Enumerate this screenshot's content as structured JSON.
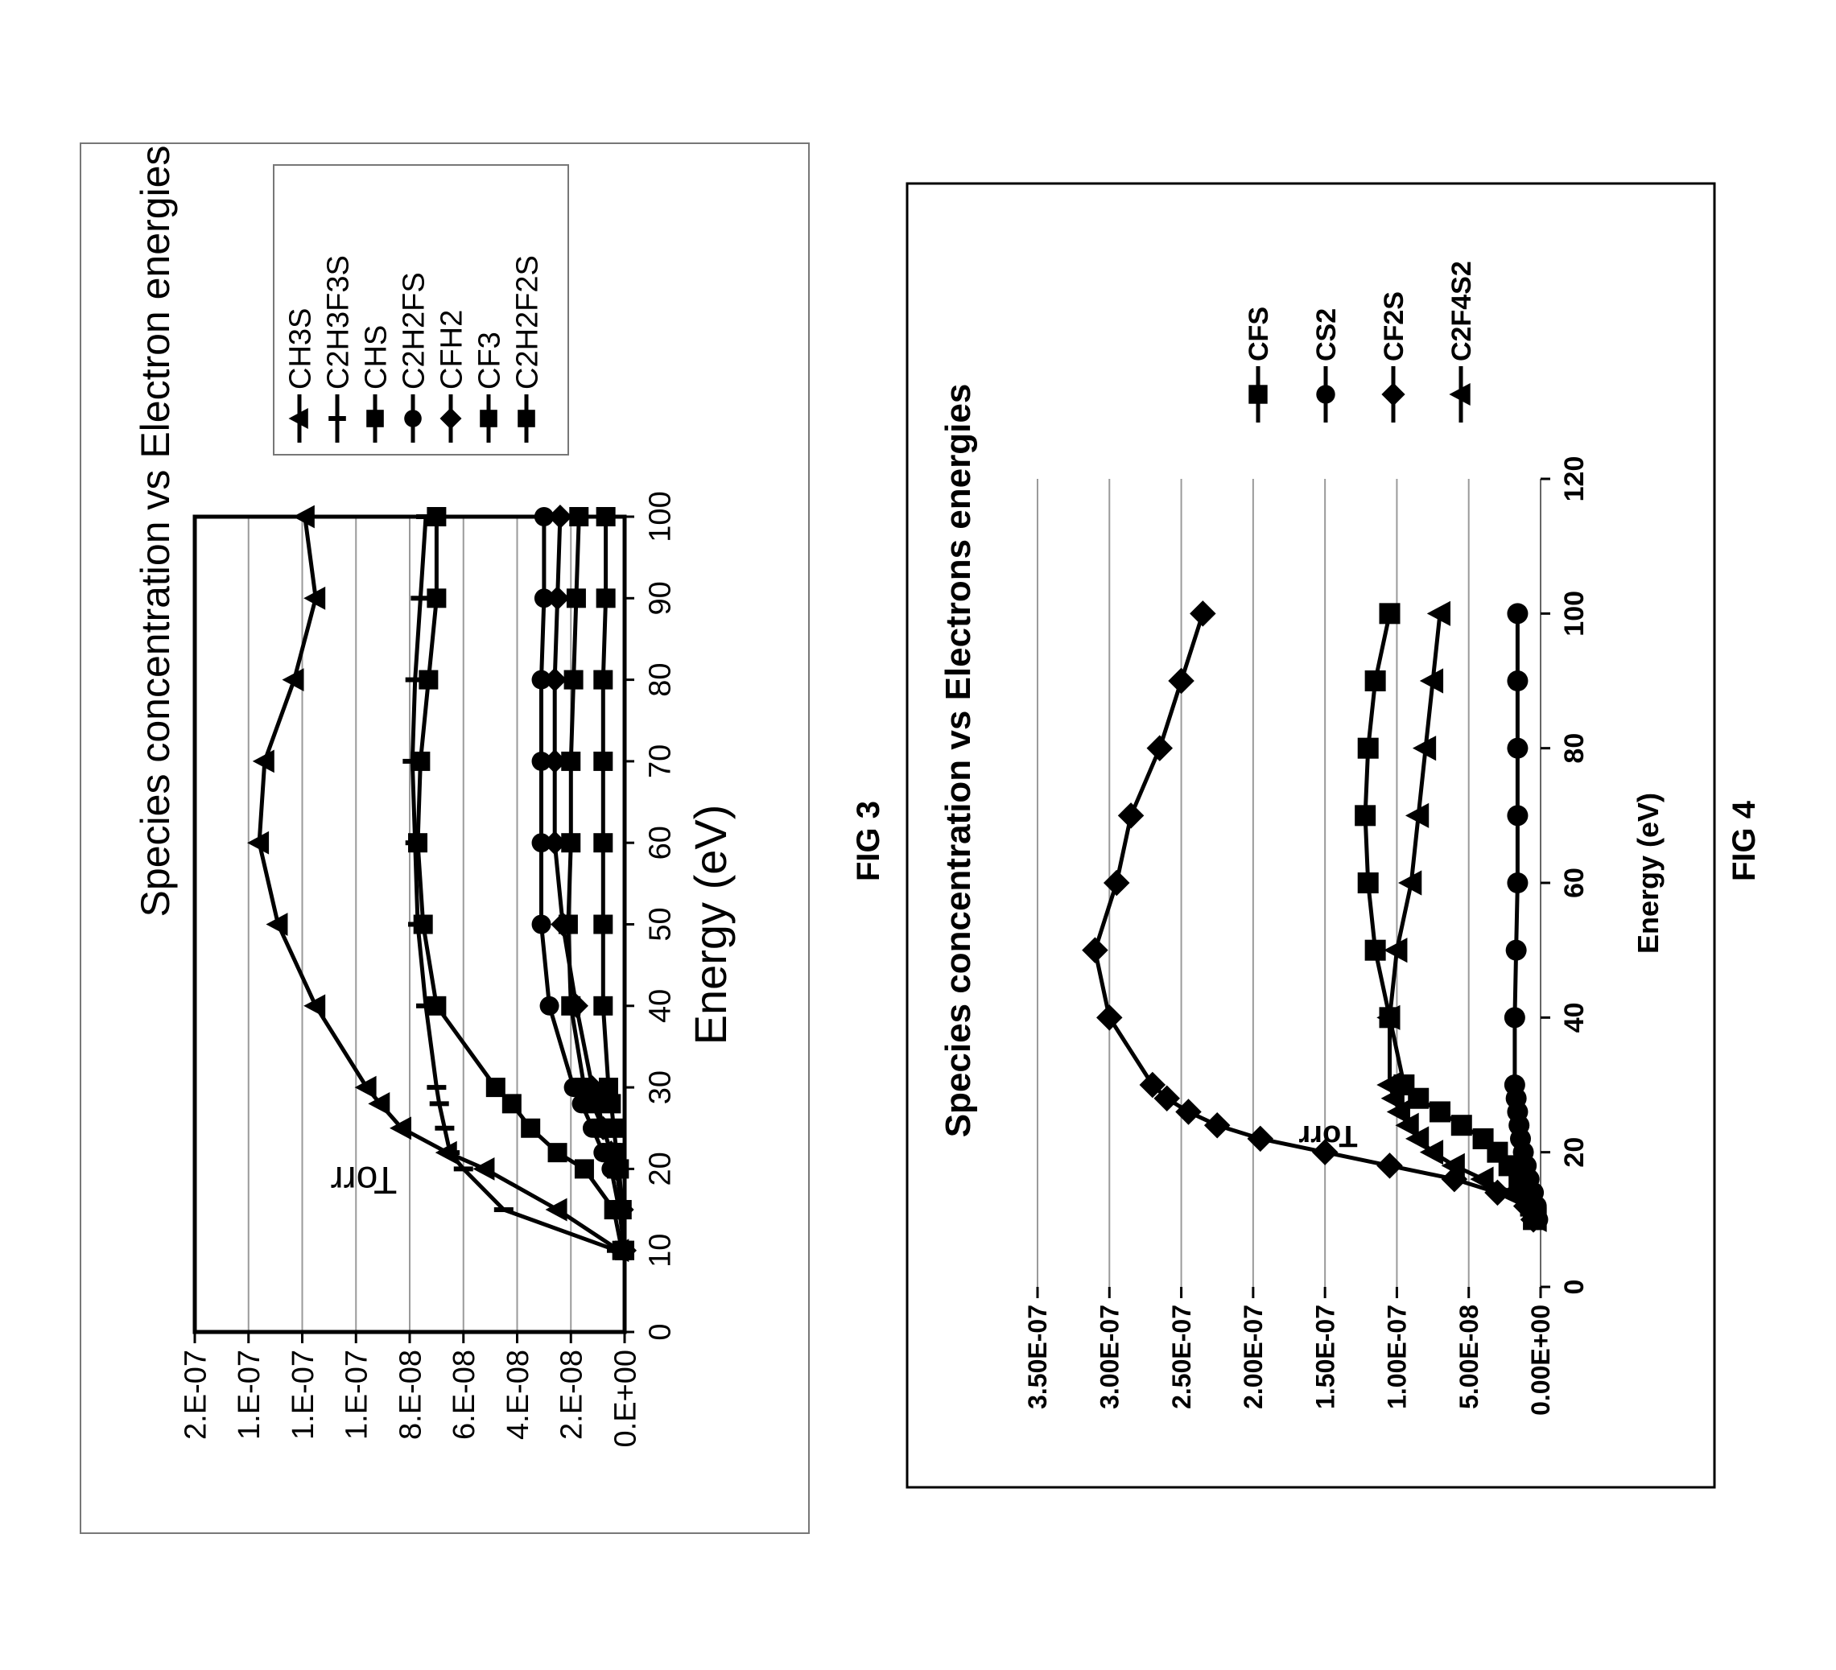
{
  "fig3": {
    "caption": "FIG 3",
    "chart_data": {
      "type": "line",
      "title": "Species concentration vs Electron energies",
      "xlabel": "Energy (eV)",
      "ylabel": "Torr",
      "xlim": [
        0,
        100
      ],
      "ylim": [
        0,
        1.6e-07
      ],
      "x_ticks": [
        0,
        10,
        20,
        30,
        40,
        50,
        60,
        70,
        80,
        90,
        100
      ],
      "y_ticks": [
        0,
        2e-08,
        4e-08,
        6e-08,
        8e-08,
        1e-07,
        1.2e-07,
        1.4e-07,
        1.6e-07
      ],
      "y_tick_labels": [
        "0.E+00",
        "2.E-08",
        "4.E-08",
        "6.E-08",
        "8.E-08",
        "1.E-07",
        "1.E-07",
        "1.E-07",
        "2.E-07"
      ],
      "grid": "horizontal",
      "legend_position": "right",
      "x": [
        10,
        15,
        20,
        22,
        25,
        28,
        30,
        40,
        50,
        60,
        70,
        80,
        90,
        100
      ],
      "series": [
        {
          "name": "CH3S",
          "marker": "triangle",
          "values": [
            2e-09,
            2.5e-08,
            5.2e-08,
            6.6e-08,
            8.3e-08,
            9.1e-08,
            9.6e-08,
            1.15e-07,
            1.29e-07,
            1.36e-07,
            1.34e-07,
            1.23e-07,
            1.15e-07,
            1.19e-07
          ]
        },
        {
          "name": "C2H3F3S",
          "marker": "bar",
          "values": [
            3e-09,
            4.5e-08,
            6e-08,
            6.5e-08,
            6.7e-08,
            6.9e-08,
            7e-08,
            7.4e-08,
            7.7e-08,
            7.8e-08,
            7.9e-08,
            7.8e-08,
            7.6e-08,
            7.4e-08
          ]
        },
        {
          "name": "CHS",
          "marker": "square",
          "values": [
            1e-09,
            4e-09,
            1.5e-08,
            2.5e-08,
            3.5e-08,
            4.2e-08,
            4.8e-08,
            7e-08,
            7.5e-08,
            7.7e-08,
            7.6e-08,
            7.3e-08,
            7e-08,
            7e-08
          ]
        },
        {
          "name": "C2H2FS",
          "marker": "circle",
          "values": [
            0.0,
            2e-09,
            5e-09,
            8e-09,
            1.2e-08,
            1.6e-08,
            1.9e-08,
            2.8e-08,
            3.1e-08,
            3.1e-08,
            3.1e-08,
            3.1e-08,
            3e-08,
            3e-08
          ]
        },
        {
          "name": "CFH2",
          "marker": "diamond",
          "values": [
            0.0,
            1e-09,
            3e-09,
            5e-09,
            8e-09,
            1e-08,
            1.2e-08,
            1.8e-08,
            2.3e-08,
            2.6e-08,
            2.6e-08,
            2.6e-08,
            2.5e-08,
            2.4e-08
          ]
        },
        {
          "name": "CF3",
          "marker": "square",
          "values": [
            0.0,
            1e-09,
            3e-09,
            5e-09,
            8e-09,
            1.2e-08,
            1.5e-08,
            2e-08,
            2.1e-08,
            2e-08,
            2e-08,
            1.9e-08,
            1.8e-08,
            1.7e-08
          ]
        },
        {
          "name": "C2H2F2S",
          "marker": "square",
          "values": [
            0.0,
            1e-09,
            2e-09,
            3e-09,
            4e-09,
            5e-09,
            6e-09,
            8e-09,
            8e-09,
            8e-09,
            8e-09,
            8e-09,
            7e-09,
            7e-09
          ]
        }
      ]
    }
  },
  "fig4": {
    "caption": "FIG 4",
    "chart_data": {
      "type": "line",
      "title": "Species concentration vs Electrons energies",
      "xlabel": "Energy (eV)",
      "ylabel": "Torr",
      "xlim": [
        0,
        120
      ],
      "ylim": [
        0,
        3.5e-07
      ],
      "x_ticks": [
        0,
        20,
        40,
        60,
        80,
        100,
        120
      ],
      "y_ticks": [
        0,
        5e-08,
        1e-07,
        1.5e-07,
        2e-07,
        2.5e-07,
        3e-07,
        3.5e-07
      ],
      "y_tick_labels": [
        "0.00E+00",
        "5.00E-08",
        "1.00E-07",
        "1.50E-07",
        "2.00E-07",
        "2.50E-07",
        "3.00E-07",
        "3.50E-07"
      ],
      "grid": "horizontal",
      "legend_position": "right",
      "x": [
        10,
        12,
        14,
        16,
        18,
        20,
        22,
        24,
        26,
        28,
        30,
        40,
        50,
        60,
        70,
        80,
        90,
        100
      ],
      "series": [
        {
          "name": "CFS",
          "marker": "square",
          "values": [
            5e-09,
            7e-09,
            1e-08,
            1.5e-08,
            2.2e-08,
            3e-08,
            4e-08,
            5.5e-08,
            7e-08,
            8.5e-08,
            9.5e-08,
            1.05e-07,
            1.15e-07,
            1.2e-07,
            1.22e-07,
            1.2e-07,
            1.15e-07,
            1.05e-07
          ]
        },
        {
          "name": "CS2",
          "marker": "circle",
          "values": [
            2e-09,
            3e-09,
            5e-09,
            8e-09,
            1e-08,
            1.2e-08,
            1.4e-08,
            1.5e-08,
            1.6e-08,
            1.7e-08,
            1.8e-08,
            1.8e-08,
            1.7e-08,
            1.6e-08,
            1.6e-08,
            1.6e-08,
            1.6e-08,
            1.6e-08
          ]
        },
        {
          "name": "CF2S",
          "marker": "diamond",
          "values": [
            5e-09,
            1e-08,
            3e-08,
            6e-08,
            1.05e-07,
            1.5e-07,
            1.95e-07,
            2.25e-07,
            2.45e-07,
            2.6e-07,
            2.7e-07,
            3e-07,
            3.1e-07,
            2.95e-07,
            2.85e-07,
            2.65e-07,
            2.5e-07,
            2.35e-07
          ]
        },
        {
          "name": "C2F4S2",
          "marker": "triangle",
          "values": [
            3e-09,
            8e-09,
            2e-08,
            4e-08,
            6e-08,
            7.5e-08,
            8.5e-08,
            9.2e-08,
            9.8e-08,
            1.02e-07,
            1.05e-07,
            1.05e-07,
            1e-07,
            9e-08,
            8.5e-08,
            8e-08,
            7.5e-08,
            7e-08
          ]
        }
      ]
    }
  }
}
